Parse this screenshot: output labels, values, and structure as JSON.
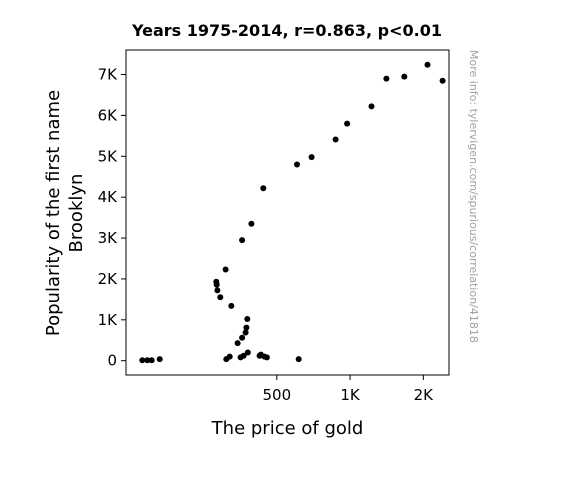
{
  "chart_data": {
    "type": "scatter",
    "title": "Years 1975-2014, r=0.863, p<0.01",
    "xlabel": "The price of gold",
    "ylabel": [
      "Popularity of the first name",
      "Brooklyn"
    ],
    "x_scale": "log",
    "xlim": [
      120,
      2550
    ],
    "ylim": [
      -350,
      7600
    ],
    "x_ticks": [
      {
        "value": 500,
        "label": "500"
      },
      {
        "value": 1000,
        "label": "1K"
      },
      {
        "value": 2000,
        "label": "2K"
      }
    ],
    "y_ticks": [
      {
        "value": 0,
        "label": "0"
      },
      {
        "value": 1000,
        "label": "1K"
      },
      {
        "value": 2000,
        "label": "2K"
      },
      {
        "value": 3000,
        "label": "3K"
      },
      {
        "value": 4000,
        "label": "4K"
      },
      {
        "value": 5000,
        "label": "5K"
      },
      {
        "value": 6000,
        "label": "6K"
      },
      {
        "value": 7000,
        "label": "7K"
      }
    ],
    "grid": false,
    "points": [
      {
        "x": 140,
        "y": 10
      },
      {
        "x": 147,
        "y": 10
      },
      {
        "x": 153,
        "y": 10
      },
      {
        "x": 165,
        "y": 40
      },
      {
        "x": 310,
        "y": 40
      },
      {
        "x": 320,
        "y": 100
      },
      {
        "x": 355,
        "y": 80
      },
      {
        "x": 365,
        "y": 120
      },
      {
        "x": 380,
        "y": 200
      },
      {
        "x": 425,
        "y": 120
      },
      {
        "x": 430,
        "y": 150
      },
      {
        "x": 445,
        "y": 100
      },
      {
        "x": 455,
        "y": 80
      },
      {
        "x": 615,
        "y": 40
      },
      {
        "x": 345,
        "y": 430
      },
      {
        "x": 360,
        "y": 560
      },
      {
        "x": 372,
        "y": 690
      },
      {
        "x": 375,
        "y": 810
      },
      {
        "x": 378,
        "y": 1020
      },
      {
        "x": 325,
        "y": 1340
      },
      {
        "x": 293,
        "y": 1550
      },
      {
        "x": 285,
        "y": 1720
      },
      {
        "x": 283,
        "y": 1860
      },
      {
        "x": 282,
        "y": 1930
      },
      {
        "x": 308,
        "y": 2230
      },
      {
        "x": 360,
        "y": 2950
      },
      {
        "x": 393,
        "y": 3350
      },
      {
        "x": 440,
        "y": 4220
      },
      {
        "x": 605,
        "y": 4800
      },
      {
        "x": 695,
        "y": 4980
      },
      {
        "x": 872,
        "y": 5410
      },
      {
        "x": 972,
        "y": 5800
      },
      {
        "x": 1225,
        "y": 6220
      },
      {
        "x": 1410,
        "y": 6900
      },
      {
        "x": 1670,
        "y": 6950
      },
      {
        "x": 2080,
        "y": 7240
      },
      {
        "x": 2400,
        "y": 6850
      }
    ]
  },
  "watermark": "More info: tylervigen.com/spurious/correlation/41818"
}
